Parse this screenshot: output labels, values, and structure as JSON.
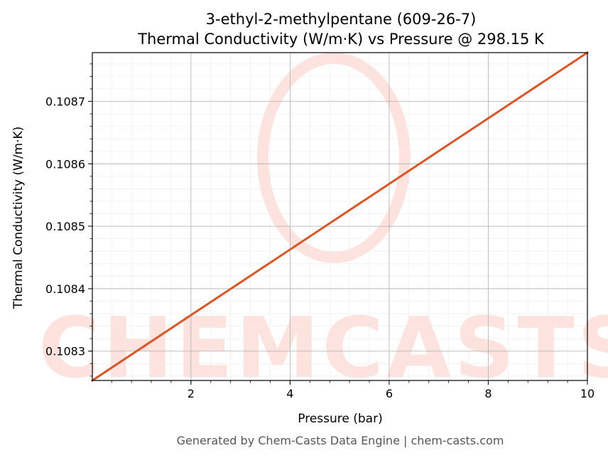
{
  "chart_data": {
    "type": "line",
    "title": "3-ethyl-2-methylpentane (609-26-7)",
    "subtitle": "Thermal Conductivity (W/m·K) vs Pressure @ 298.15 K",
    "xlabel": "Pressure (bar)",
    "ylabel": "Thermal Conductivity (W/m·K)",
    "xlim": [
      0.01,
      10
    ],
    "ylim": [
      0.108253,
      0.108778
    ],
    "x_ticks": [
      2,
      4,
      6,
      8,
      10
    ],
    "x_tick_labels": [
      "2",
      "4",
      "6",
      "8",
      "10"
    ],
    "y_ticks": [
      0.1083,
      0.1084,
      0.1085,
      0.1086,
      0.1087
    ],
    "y_tick_labels": [
      "0.1083",
      "0.1084",
      "0.1085",
      "0.1086",
      "0.1087"
    ],
    "grid": true,
    "series": [
      {
        "color": "#d95525",
        "x": [
          0.01,
          10
        ],
        "y": [
          0.108253,
          0.108778
        ]
      }
    ]
  },
  "watermark": {
    "text": "CHEMCASTS",
    "color": "#fde2de"
  },
  "footer": "Generated by Chem-Casts Data Engine | chem-casts.com"
}
